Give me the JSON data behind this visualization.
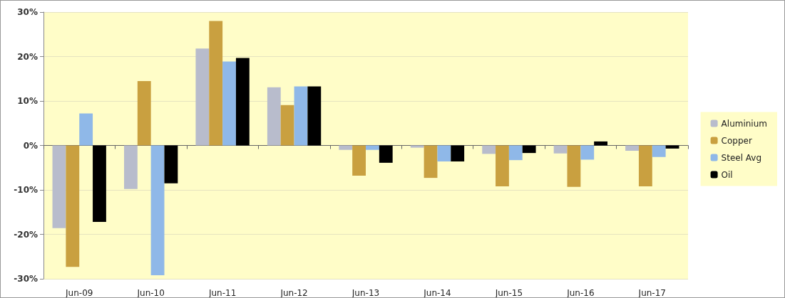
{
  "chart_data": {
    "type": "bar",
    "categories": [
      "Jun-09",
      "Jun-10",
      "Jun-11",
      "Jun-12",
      "Jun-13",
      "Jun-14",
      "Jun-15",
      "Jun-16",
      "Jun-17"
    ],
    "series": [
      {
        "name": "Aluminium",
        "color": "#b8bccc",
        "values": [
          -18.6,
          -9.8,
          21.8,
          13.1,
          -1.0,
          -0.5,
          -1.9,
          -1.8,
          -1.2
        ]
      },
      {
        "name": "Copper",
        "color": "#c9a040",
        "values": [
          -27.3,
          14.5,
          28.0,
          9.1,
          -6.8,
          -7.3,
          -9.2,
          -9.3,
          -9.2
        ]
      },
      {
        "name": "Steel Avg",
        "color": "#8fb8e8",
        "values": [
          7.2,
          -29.2,
          18.9,
          13.3,
          -1.0,
          -3.6,
          -3.3,
          -3.2,
          -2.6
        ]
      },
      {
        "name": "Oil",
        "color": "#000000",
        "values": [
          -17.2,
          -8.5,
          19.7,
          13.3,
          -3.9,
          -3.6,
          -1.7,
          0.9,
          -0.7
        ]
      }
    ],
    "ylim": [
      -30,
      30
    ],
    "yticks": [
      {
        "value": -30,
        "label": "-30%"
      },
      {
        "value": -20,
        "label": "-20%"
      },
      {
        "value": -10,
        "label": "-10%"
      },
      {
        "value": 0,
        "label": "0%"
      },
      {
        "value": 10,
        "label": "10%"
      },
      {
        "value": 20,
        "label": "20%"
      },
      {
        "value": 30,
        "label": "30%"
      }
    ],
    "grid": "y",
    "legend": "right"
  }
}
